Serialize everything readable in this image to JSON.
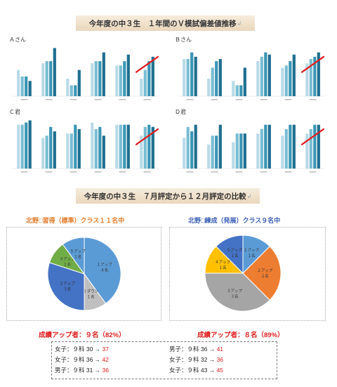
{
  "title1": "今年度の中３生　１年間のＶ模試偏差値推移",
  "title2": "今年度の中３生　７月評定から１２月評定の比較",
  "charts": [
    {
      "label": "Ａさん",
      "groups": [
        [
          54,
          48,
          48,
          44
        ],
        [
          60,
          62,
          62,
          74
        ],
        [
          46,
          40,
          40,
          54
        ],
        [
          60,
          62,
          62,
          70
        ],
        [
          58,
          58,
          62,
          68
        ],
        [
          46,
          54,
          62,
          66
        ]
      ]
    },
    {
      "label": "Ｂさん",
      "groups": [
        [
          64,
          64,
          70,
          66
        ],
        [
          46,
          56,
          62,
          64
        ],
        [
          44,
          40,
          40,
          56
        ],
        [
          62,
          66,
          70,
          68
        ],
        [
          56,
          58,
          62,
          68
        ],
        [
          60,
          64,
          66,
          70
        ]
      ]
    },
    {
      "label": "Ｃ君",
      "groups": [
        [
          70,
          70,
          72,
          74
        ],
        [
          58,
          60,
          68,
          64
        ],
        [
          62,
          62,
          70,
          66
        ],
        [
          72,
          66,
          68,
          60
        ],
        [
          70,
          70,
          70,
          70
        ],
        [
          60,
          68,
          70,
          68
        ]
      ]
    },
    {
      "label": "Ｄ君",
      "groups": [
        [
          58,
          68,
          64,
          70
        ],
        [
          52,
          60,
          60,
          70
        ],
        [
          54,
          62,
          62,
          62
        ],
        [
          62,
          66,
          70,
          70
        ],
        [
          60,
          66,
          70,
          70
        ],
        [
          62,
          66,
          70,
          70
        ]
      ]
    }
  ],
  "pies": [
    {
      "heading_left": "北野",
      "heading_mid": "習得（標準）クラス",
      "heading_count": "１１名中",
      "slices": [
        {
          "label": "１アップ",
          "value_label": "４名",
          "value": 4,
          "color": "#5b9bd5"
        },
        {
          "label": "１ダウン",
          "value_label": "１名",
          "value": 1,
          "color": "#bfbfbf"
        },
        {
          "label": "２アップ",
          "value_label": "３名",
          "value": 3,
          "color": "#4472c4"
        },
        {
          "label": "４アップ",
          "value_label": "１名",
          "value": 1,
          "color": "#70ad47"
        },
        {
          "label": "５アップ",
          "value_label": "１名",
          "value": 1,
          "color": "#5b9bd5"
        }
      ]
    },
    {
      "heading_left": "北野",
      "heading_mid": "練成（発展）クラス",
      "heading_count": "９名中",
      "slices": [
        {
          "label": "１アップ",
          "value_label": "１名",
          "value": 1,
          "color": "#5b9bd5"
        },
        {
          "label": "２アップ",
          "value_label": "２名",
          "value": 2,
          "color": "#ed7d31"
        },
        {
          "label": "３アップ",
          "value_label": "３名",
          "value": 3,
          "color": "#a5a5a5"
        },
        {
          "label": "４アップ",
          "value_label": "１名",
          "value": 1,
          "color": "#ffc000"
        },
        {
          "label": "５アップ",
          "value_label": "１名",
          "value": 1,
          "color": "#4472c4"
        }
      ]
    }
  ],
  "summary_left": "成績アップ者：９名（82%）",
  "summary_right": "成績アップ者：８名（89%）",
  "rows": [
    {
      "l_prefix": "女子：９科 30 → ",
      "l_val": "37",
      "r_prefix": "男子：９科 36 → ",
      "r_val": "41"
    },
    {
      "l_prefix": "女子：９科 36 → ",
      "l_val": "42",
      "r_prefix": "女子：９科 32 → ",
      "r_val": "36"
    },
    {
      "l_prefix": "男子：９科 31 → ",
      "l_val": "36",
      "r_prefix": "女子：９科 43 → ",
      "r_val": "45"
    }
  ],
  "colors": {
    "bar1": "#b9dbe7",
    "bar2": "#79bdd3",
    "bar3": "#3a96b4",
    "bar4": "#1f6f8f",
    "arrow": "#e02020"
  }
}
